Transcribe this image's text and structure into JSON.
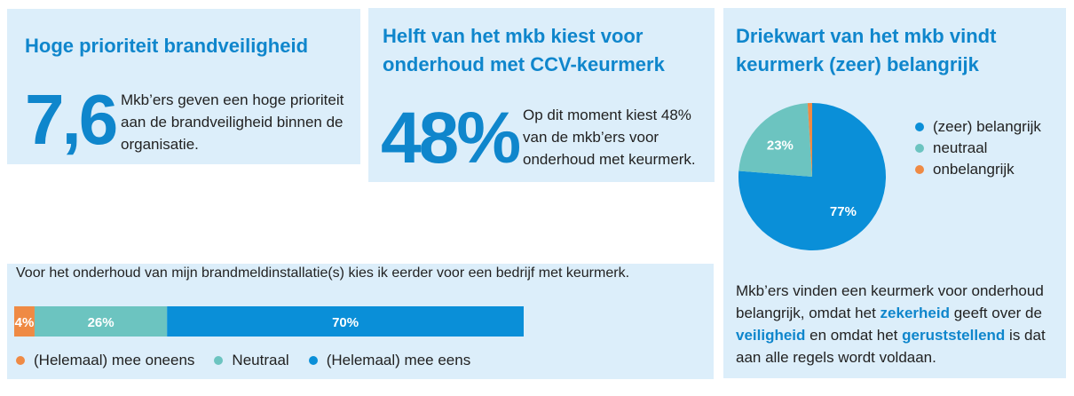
{
  "panel1": {
    "title": "Hoge prioriteit brandveiligheid",
    "stat": "7,6",
    "text": "Mkb’ers geven een hoge prioriteit aan de brandveiligheid binnen de organisatie."
  },
  "panel2": {
    "title": "Helft van het mkb kiest voor onderhoud met CCV-keurmerk",
    "stat": "48%",
    "text": "Op dit moment kiest 48% van de mkb’ers voor onderhoud met keurmerk."
  },
  "panel3": {
    "title": "Driekwart van het mkb vindt keurmerk (zeer) belangrijk",
    "text_1": "Mkb’ers vinden een keurmerk voor onderhoud belangrijk, omdat het ",
    "kw_1": "zekerheid",
    "text_2": " geeft over de ",
    "kw_2": "veiligheid",
    "text_3": " en omdat het ",
    "kw_3": "geruststellend",
    "text_4": " is dat aan alle regels wordt voldaan."
  },
  "panel4": {
    "question": "Voor het onderhoud van mijn brandmeldinstallatie(s) kies ik eerder voor een bedrijf met keurmerk."
  },
  "colors": {
    "blue": "#0a8fd8",
    "teal": "#6cc4c0",
    "orange": "#ef8a44",
    "title": "#0f86cc"
  },
  "chart_data": [
    {
      "type": "pie",
      "categories": [
        "(zeer) belangrijk",
        "neutraal",
        "onbelangrijk"
      ],
      "values": [
        77,
        23,
        1
      ],
      "labels": [
        "77%",
        "23%",
        ""
      ],
      "legend_position": "right"
    },
    {
      "type": "bar",
      "orientation": "horizontal-stacked",
      "categories": [
        "(Helemaal) mee oneens",
        "Neutraal",
        "(Helemaal) mee eens"
      ],
      "values": [
        4,
        26,
        70
      ],
      "labels": [
        "4%",
        "26%",
        "70%"
      ],
      "legend_position": "bottom"
    }
  ]
}
